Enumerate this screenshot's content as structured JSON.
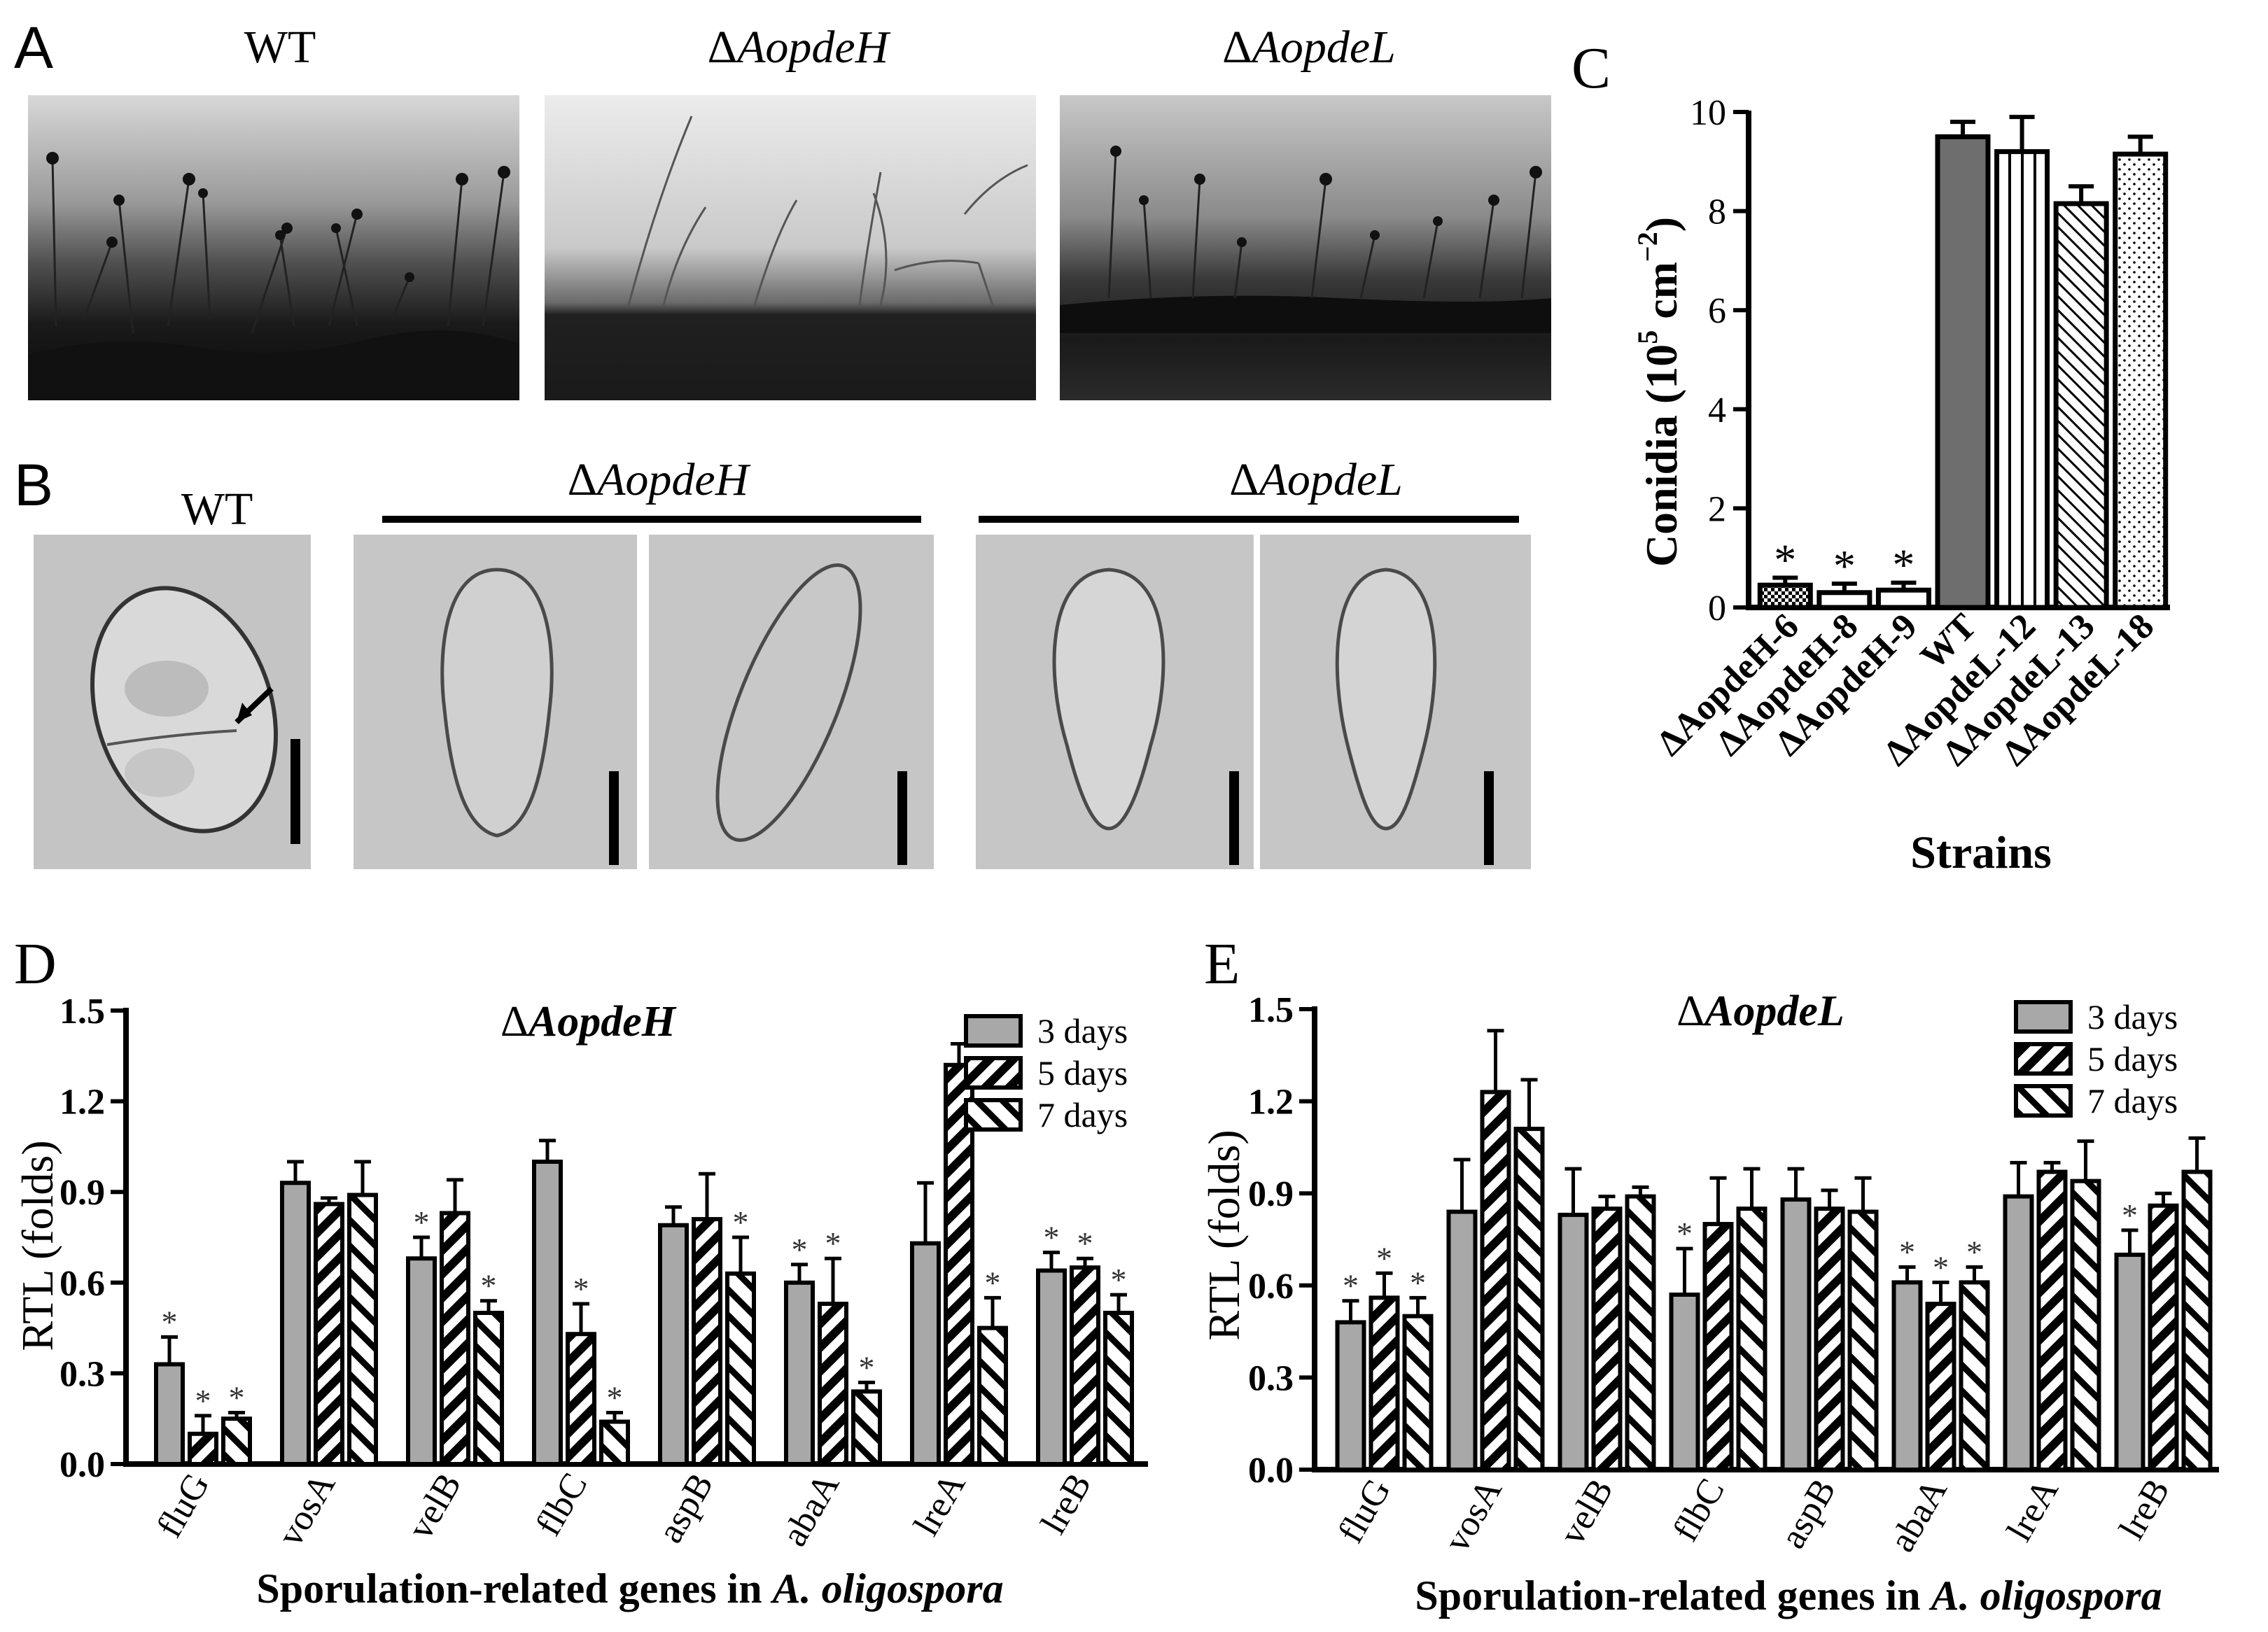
{
  "panelA": {
    "letter": "A",
    "labels": [
      {
        "prefix": "",
        "name": "WT"
      },
      {
        "prefix": "Δ",
        "name": "AopdeH"
      },
      {
        "prefix": "Δ",
        "name": "AopdeL"
      }
    ]
  },
  "panelB": {
    "letter": "B",
    "labels": [
      {
        "prefix": "",
        "name": "WT"
      },
      {
        "prefix": "Δ",
        "name": "AopdeH"
      },
      {
        "prefix": "Δ",
        "name": "AopdeL"
      }
    ]
  },
  "colors": {
    "dark_gray": "#6e6e6e",
    "light_gray": "#a8a8a8",
    "photo_bg": "#c8c8c8"
  },
  "chart_data": [
    {
      "id": "C",
      "letter": "C",
      "type": "bar",
      "categories": [
        "ΔAopdeH-6",
        "ΔAopdeH-8",
        "ΔAopdeH-9",
        "WT",
        "ΔAopdeL-12",
        "ΔAopdeL-13",
        "ΔAopdeL-18"
      ],
      "values": [
        0.45,
        0.3,
        0.35,
        9.5,
        9.2,
        8.15,
        9.15
      ],
      "errors": [
        0.15,
        0.18,
        0.15,
        0.3,
        0.7,
        0.35,
        0.35
      ],
      "significant": [
        true,
        true,
        true,
        false,
        false,
        false,
        false
      ],
      "patterns": [
        "checker",
        "none",
        "none",
        "dark",
        "vertical",
        "diagonal",
        "dots"
      ],
      "ylabel_main": "Conidia (10",
      "ylabel_exp1": "5",
      "ylabel_mid": " cm",
      "ylabel_exp2": "−2",
      "ylabel_end": ")",
      "xlabel": "Strains",
      "ylim": [
        0,
        10
      ],
      "yticks": [
        "0",
        "2",
        "4",
        "6",
        "8",
        "10"
      ],
      "star": "*"
    },
    {
      "id": "D",
      "letter": "D",
      "type": "bar",
      "title_prefix": "Δ",
      "title_name": "AopdeH",
      "categories": [
        "fluG",
        "vosA",
        "velB",
        "flbC",
        "aspB",
        "abaA",
        "lreA",
        "lreB"
      ],
      "series": [
        {
          "name": "3 days",
          "values": [
            0.33,
            0.93,
            0.68,
            1.0,
            0.79,
            0.6,
            0.73,
            0.64
          ],
          "errors": [
            0.09,
            0.07,
            0.07,
            0.07,
            0.06,
            0.06,
            0.2,
            0.06
          ],
          "sig": [
            true,
            false,
            true,
            false,
            false,
            true,
            false,
            true
          ]
        },
        {
          "name": "5 days",
          "values": [
            0.1,
            0.86,
            0.83,
            0.43,
            0.81,
            0.53,
            1.32,
            0.65
          ],
          "errors": [
            0.06,
            0.02,
            0.11,
            0.1,
            0.15,
            0.15,
            0.07,
            0.03
          ],
          "sig": [
            true,
            false,
            false,
            true,
            false,
            true,
            false,
            true
          ]
        },
        {
          "name": "7 days",
          "values": [
            0.15,
            0.89,
            0.5,
            0.14,
            0.63,
            0.24,
            0.45,
            0.5
          ],
          "errors": [
            0.02,
            0.11,
            0.04,
            0.03,
            0.12,
            0.03,
            0.1,
            0.06
          ],
          "sig": [
            true,
            false,
            true,
            true,
            true,
            true,
            true,
            true
          ]
        }
      ],
      "ylabel": "RTL (folds)",
      "xlabel_prefix": "Sporulation-related genes in ",
      "xlabel_species": "A. oligospora",
      "ylim": [
        0,
        1.5
      ],
      "yticks": [
        "0.0",
        "0.3",
        "0.6",
        "0.9",
        "1.2",
        "1.5"
      ],
      "legend_position": "top-right",
      "star": "*"
    },
    {
      "id": "E",
      "letter": "E",
      "type": "bar",
      "title_prefix": "Δ",
      "title_name": "AopdeL",
      "categories": [
        "fluG",
        "vosA",
        "velB",
        "flbC",
        "aspB",
        "abaA",
        "lreA",
        "lreB"
      ],
      "series": [
        {
          "name": "3 days",
          "values": [
            0.48,
            0.84,
            0.83,
            0.57,
            0.88,
            0.61,
            0.89,
            0.7
          ],
          "errors": [
            0.07,
            0.17,
            0.15,
            0.15,
            0.1,
            0.05,
            0.11,
            0.08
          ],
          "sig": [
            true,
            false,
            false,
            true,
            false,
            true,
            false,
            true
          ]
        },
        {
          "name": "5 days",
          "values": [
            0.56,
            1.23,
            0.85,
            0.8,
            0.85,
            0.54,
            0.97,
            0.86
          ],
          "errors": [
            0.08,
            0.2,
            0.04,
            0.15,
            0.06,
            0.07,
            0.03,
            0.04
          ],
          "sig": [
            true,
            false,
            false,
            false,
            false,
            true,
            false,
            false
          ]
        },
        {
          "name": "7 days",
          "values": [
            0.5,
            1.11,
            0.89,
            0.85,
            0.84,
            0.61,
            0.94,
            0.97
          ],
          "errors": [
            0.06,
            0.16,
            0.03,
            0.13,
            0.11,
            0.05,
            0.13,
            0.11
          ],
          "sig": [
            true,
            false,
            false,
            false,
            false,
            true,
            false,
            false
          ]
        }
      ],
      "ylabel": "RTL (folds)",
      "xlabel_prefix": "Sporulation-related genes in ",
      "xlabel_species": "A. oligospora",
      "ylim": [
        0,
        1.5
      ],
      "yticks": [
        "0.0",
        "0.3",
        "0.6",
        "0.9",
        "1.2",
        "1.5"
      ],
      "legend_position": "top-right",
      "star": "*"
    }
  ]
}
